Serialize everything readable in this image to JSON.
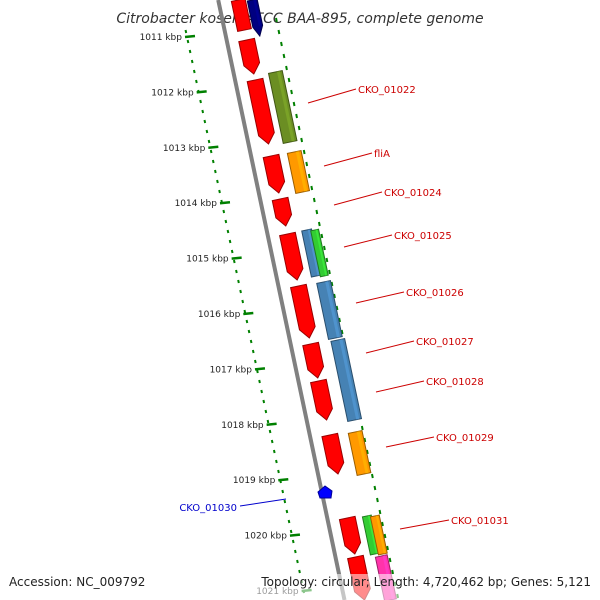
{
  "title": "Citrobacter koseri ATCC BAA-895, complete genome",
  "footer": {
    "accession": "Accession: NC_009792",
    "topology": "Topology: circular; Length: 4,720,462 bp; Genes: 5,121"
  },
  "ruler": [
    "1011 kbp",
    "1012 kbp",
    "1013 kbp",
    "1014 kbp",
    "1015 kbp",
    "1016 kbp",
    "1017 kbp",
    "1018 kbp",
    "1019 kbp",
    "1020 kbp",
    "1021 kbp"
  ],
  "colors": {
    "forward_cds": "#ff0000",
    "orange": "#ff9900",
    "olive": "#6b8e23",
    "steelblue": "#4682b4",
    "green": "#33cc33",
    "pink": "#ff33aa",
    "navy": "#000080",
    "label_red": "#cc0000",
    "label_blue": "#0000cc",
    "ruler_green": "#008000",
    "backbone": "#808080"
  },
  "labels_right": [
    "CKO_01022",
    "fliA",
    "CKO_01024",
    "CKO_01025",
    "CKO_01026",
    "CKO_01027",
    "CKO_01028",
    "CKO_01029",
    "CKO_01031"
  ],
  "labels_left": [
    "CKO_01030"
  ]
}
